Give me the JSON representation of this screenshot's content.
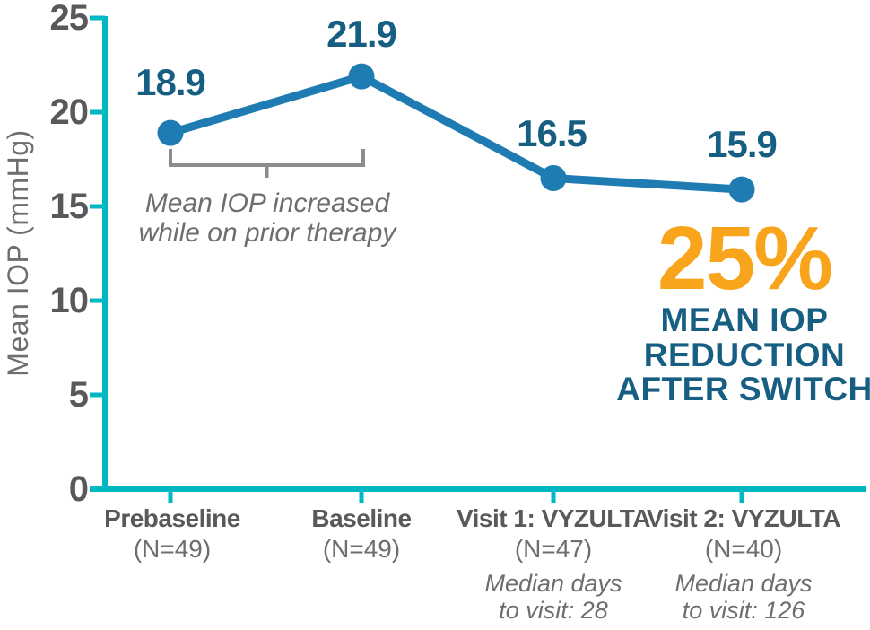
{
  "chart_data": {
    "type": "line",
    "title": "",
    "xlabel": "",
    "ylabel": "Mean IOP (mmHg)",
    "ylim": [
      0,
      25
    ],
    "yticks": [
      0,
      5,
      10,
      15,
      20,
      25
    ],
    "ytick_labels": [
      "25",
      "20",
      "15",
      "10",
      "5",
      "0"
    ],
    "grid": false,
    "legend": "none",
    "categories": [
      "Prebaseline",
      "Baseline",
      "Visit 1: VYZULTA",
      "Visit 2: VYZULTA"
    ],
    "category_sublabels": [
      "(N=49)",
      "(N=49)",
      "(N=47)",
      "(N=40)"
    ],
    "category_notes": [
      null,
      null,
      [
        "Median days",
        "to visit: 28"
      ],
      [
        "Median days",
        "to visit: 126"
      ]
    ],
    "series": [
      {
        "name": "Mean IOP",
        "values": [
          18.9,
          21.9,
          16.5,
          15.9
        ]
      }
    ],
    "point_labels": [
      "18.9",
      "21.9",
      "16.5",
      "15.9"
    ],
    "annotation": {
      "line1": "Mean IOP increased",
      "line2": "while on prior therapy"
    },
    "callout": {
      "value": "25%",
      "line1": "MEAN IOP",
      "line2": "REDUCTION",
      "line3": "AFTER SWITCH"
    },
    "colors": {
      "axis": "#00B8C2",
      "line": "#1E7CB2",
      "point": "#1E7CB2",
      "point_label": "#175F82",
      "callout_value": "#F8A51B",
      "callout_text": "#175F82",
      "tick_label": "#58595B",
      "note_text": "#6D6E71",
      "bracket": "#8A8C8E"
    }
  }
}
